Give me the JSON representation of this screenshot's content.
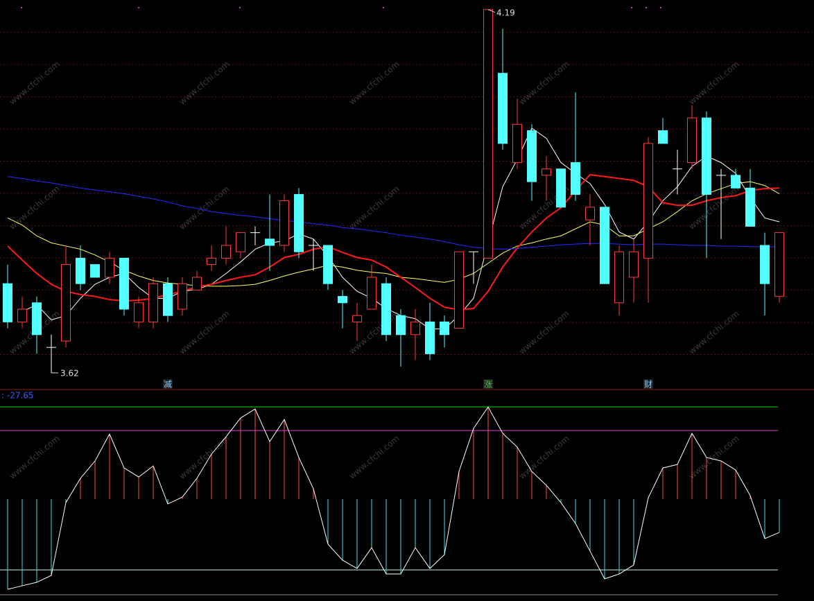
{
  "watermark": "www.cfchi.com",
  "chart_data": [
    {
      "type": "candlestick",
      "ylim": [
        3.596,
        4.205
      ],
      "grid": true,
      "up_color": "#ff3c3c",
      "down_color": "#54ffff",
      "doji_color": "#ffffff",
      "open": [
        3.76,
        3.7,
        3.73,
        3.66,
        3.67,
        3.8,
        3.79,
        3.77,
        3.8,
        3.7,
        3.7,
        3.76,
        3.72,
        3.75,
        3.79,
        3.8,
        3.81,
        3.84,
        3.83,
        3.82,
        3.9,
        3.82,
        3.82,
        3.74,
        3.7,
        3.72,
        3.76,
        3.71,
        3.68,
        3.7,
        3.7,
        3.69,
        3.81,
        3.8,
        4.09,
        3.95,
        4.0,
        3.93,
        3.94,
        3.95,
        3.86,
        3.88,
        3.73,
        3.77,
        3.8,
        4.0,
        3.94,
        3.95,
        4.02,
        3.93,
        3.93,
        3.91,
        3.82,
        3.74
      ],
      "high": [
        3.79,
        3.74,
        3.74,
        3.68,
        3.82,
        3.82,
        3.79,
        3.81,
        3.8,
        3.74,
        3.77,
        3.77,
        3.77,
        3.78,
        3.82,
        3.85,
        3.84,
        3.85,
        3.9,
        3.9,
        3.91,
        3.83,
        3.82,
        3.75,
        3.73,
        3.79,
        3.77,
        3.72,
        3.72,
        3.73,
        3.71,
        3.81,
        3.81,
        4.19,
        4.16,
        4.05,
        4.01,
        3.96,
        3.94,
        4.06,
        3.9,
        3.88,
        3.82,
        3.83,
        3.99,
        4.02,
        3.97,
        4.04,
        4.03,
        3.94,
        3.94,
        3.94,
        3.84,
        3.84
      ],
      "low": [
        3.69,
        3.69,
        3.65,
        3.62,
        3.66,
        3.75,
        3.77,
        3.76,
        3.71,
        3.69,
        3.69,
        3.7,
        3.71,
        3.75,
        3.78,
        3.79,
        3.8,
        3.82,
        3.78,
        3.81,
        3.8,
        3.78,
        3.75,
        3.69,
        3.67,
        3.72,
        3.67,
        3.63,
        3.64,
        3.64,
        3.66,
        3.69,
        3.76,
        3.8,
        3.97,
        3.94,
        3.89,
        3.89,
        3.88,
        3.89,
        3.82,
        3.76,
        3.71,
        3.73,
        3.73,
        3.98,
        3.9,
        3.94,
        3.8,
        3.83,
        3.91,
        3.85,
        3.71,
        3.73
      ],
      "close": [
        3.7,
        3.72,
        3.68,
        3.66,
        3.79,
        3.76,
        3.77,
        3.8,
        3.72,
        3.73,
        3.76,
        3.71,
        3.76,
        3.77,
        3.8,
        3.82,
        3.84,
        3.84,
        3.82,
        3.89,
        3.81,
        3.82,
        3.76,
        3.73,
        3.71,
        3.77,
        3.68,
        3.68,
        3.7,
        3.65,
        3.68,
        3.81,
        3.81,
        4.19,
        3.98,
        4.01,
        3.92,
        3.94,
        3.88,
        3.9,
        3.88,
        3.76,
        3.81,
        3.81,
        3.98,
        3.98,
        3.94,
        4.02,
        3.9,
        3.93,
        3.91,
        3.85,
        3.76,
        3.84
      ],
      "event_labels": [
        null,
        null,
        null,
        null,
        null,
        null,
        null,
        null,
        null,
        null,
        null,
        "减",
        null,
        null,
        null,
        null,
        null,
        null,
        null,
        null,
        null,
        null,
        null,
        null,
        null,
        null,
        null,
        null,
        null,
        null,
        null,
        null,
        null,
        "涨",
        null,
        null,
        null,
        null,
        null,
        null,
        null,
        null,
        null,
        null,
        "财",
        null,
        null,
        null,
        null,
        null,
        null,
        null,
        null,
        null
      ],
      "series": [
        {
          "color": "#ffffff",
          "values": [
            null,
            3.716,
            3.727,
            3.703,
            3.71,
            3.737,
            3.759,
            3.77,
            3.776,
            3.754,
            3.737,
            3.737,
            3.748,
            3.751,
            3.759,
            3.776,
            3.794,
            3.814,
            3.824,
            3.827,
            3.838,
            3.83,
            3.803,
            3.77,
            3.748,
            3.737,
            3.721,
            3.71,
            3.705,
            3.689,
            3.689,
            3.71,
            3.737,
            3.824,
            3.912,
            3.955,
            4.004,
            3.988,
            3.95,
            3.933,
            3.917,
            3.884,
            3.841,
            3.83,
            3.857,
            3.89,
            3.912,
            3.944,
            3.96,
            3.95,
            3.933,
            3.895,
            3.863,
            3.857
          ]
        },
        {
          "color": "#ffff66",
          "values": [
            3.863,
            3.852,
            3.835,
            3.824,
            3.819,
            3.814,
            3.805,
            3.794,
            3.781,
            3.772,
            3.765,
            3.761,
            3.759,
            3.757,
            3.756,
            3.756,
            3.757,
            3.759,
            3.765,
            3.772,
            3.778,
            3.783,
            3.789,
            3.786,
            3.781,
            3.778,
            3.776,
            3.77,
            3.768,
            3.765,
            3.762,
            3.767,
            3.776,
            3.792,
            3.808,
            3.819,
            3.824,
            3.83,
            3.835,
            3.846,
            3.857,
            3.852,
            3.835,
            3.835,
            3.846,
            3.857,
            3.873,
            3.89,
            3.901,
            3.909,
            3.917,
            3.92,
            3.914,
            3.901
          ]
        },
        {
          "color": "#ff1a1a",
          "values": [
            3.819,
            3.797,
            3.776,
            3.759,
            3.748,
            3.743,
            3.74,
            3.735,
            3.733,
            3.734,
            3.737,
            3.743,
            3.748,
            3.755,
            3.759,
            3.765,
            3.77,
            3.774,
            3.786,
            3.801,
            3.806,
            3.814,
            3.818,
            3.809,
            3.801,
            3.797,
            3.786,
            3.77,
            3.754,
            3.737,
            3.723,
            3.719,
            3.721,
            3.748,
            3.786,
            3.816,
            3.841,
            3.863,
            3.879,
            3.906,
            3.931,
            3.928,
            3.925,
            3.922,
            3.912,
            3.887,
            3.883,
            3.883,
            3.89,
            3.895,
            3.898,
            3.906,
            3.909,
            3.91
          ]
        },
        {
          "color": "#2a2aff",
          "values": [
            3.928,
            3.925,
            3.921,
            3.918,
            3.914,
            3.91,
            3.907,
            3.904,
            3.901,
            3.897,
            3.893,
            3.888,
            3.882,
            3.878,
            3.873,
            3.87,
            3.867,
            3.865,
            3.862,
            3.859,
            3.857,
            3.854,
            3.852,
            3.848,
            3.846,
            3.843,
            3.84,
            3.836,
            3.833,
            3.83,
            3.826,
            3.821,
            3.817,
            3.815,
            3.814,
            3.815,
            3.817,
            3.819,
            3.821,
            3.822,
            3.823,
            3.823,
            3.822,
            3.821,
            3.822,
            3.822,
            3.821,
            3.82,
            3.82,
            3.819,
            3.819,
            3.818,
            3.818,
            3.818
          ]
        }
      ]
    },
    {
      "type": "line",
      "readout": ": -27.65",
      "ylim": [
        -80.6,
        89.3
      ],
      "color": "#ffffff",
      "up_color": "#ff5050",
      "down_color": "#40e0e0",
      "levels": [
        {
          "value": 76.6,
          "color": "#00e000"
        },
        {
          "value": 57.0,
          "color": "#e040e0"
        },
        {
          "value": -58.8,
          "color": "#c8f0f0"
        }
      ],
      "values": [
        -74.9,
        -72.0,
        -69.1,
        -63.4,
        -2.9,
        17.3,
        31.7,
        54.1,
        25.9,
        18.4,
        27.6,
        -4.0,
        1.7,
        17.3,
        37.4,
        51.8,
        67.4,
        74.9,
        47.8,
        66.2,
        34.6,
        8.6,
        -37.4,
        -50.7,
        -57.6,
        -40.3,
        -62.2,
        -62.2,
        -40.3,
        -57.6,
        -46.1,
        23.0,
        58.8,
        76.6,
        54.7,
        43.2,
        23.0,
        11.5,
        -2.9,
        -20.2,
        -43.2,
        -66.2,
        -62.2,
        -54.7,
        1.2,
        25.9,
        28.8,
        54.7,
        34.6,
        31.7,
        24.2,
        2.9,
        -32.8,
        -27.65
      ]
    }
  ]
}
